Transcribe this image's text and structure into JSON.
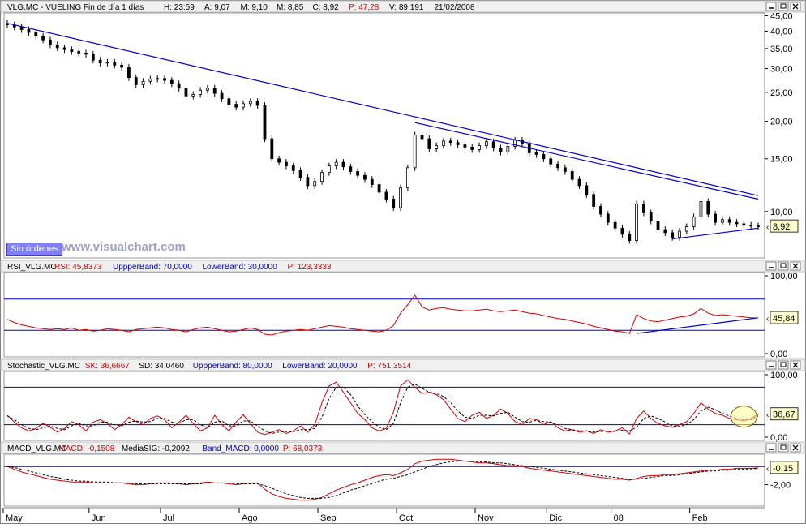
{
  "watermark": "www.visualchart.com",
  "orders_button_label": "Sin órdenes",
  "window_icons": [
    "minimize-icon",
    "maximize-icon",
    "close-icon"
  ],
  "colors": {
    "price": "#000000",
    "trendline": "#0000cc",
    "indicator_line": "#d40000",
    "band_line": "#0000cc",
    "signal_line": "#000000",
    "value_label_bg": "#ffffcc",
    "header_bg": "#f0f0f0",
    "orders_button_bg": "#8080ff"
  },
  "x_axis": {
    "labels": [
      "May",
      "Jun",
      "Jul",
      "Ago",
      "Sep",
      "Oct",
      "Nov",
      "Dic",
      "08",
      "Feb"
    ]
  },
  "chart_data": [
    {
      "type": "candlestick",
      "title": "VLG.MC - VUELING  Fin de día 1 días",
      "header_fields": [
        {
          "label": "H:",
          "value": "23:59",
          "color": "#000000"
        },
        {
          "label": "A:",
          "value": "9,07",
          "color": "#000000"
        },
        {
          "label": "M:",
          "value": "9,10",
          "color": "#000000"
        },
        {
          "label": "M:",
          "value": "8,85",
          "color": "#000000"
        },
        {
          "label": "C:",
          "value": "8,92",
          "color": "#000000"
        },
        {
          "label": "P:",
          "value": "47,28",
          "color": "#d40000"
        },
        {
          "label": "V:",
          "value": "89.191",
          "color": "#000000"
        },
        {
          "label": "",
          "value": "21/02/2008",
          "color": "#000000"
        }
      ],
      "y_scale": "log",
      "ylim": [
        7.0,
        46.0
      ],
      "y_ticks": [
        "45,00",
        "40,00",
        "35,00",
        "30,00",
        "25,00",
        "20,00",
        "15,00",
        "10,00"
      ],
      "last_value": "8,92",
      "close_series": [
        42.0,
        41.3,
        40.5,
        39.6,
        38.5,
        37.4,
        36.0,
        35.2,
        34.7,
        34.2,
        33.8,
        33.5,
        32.0,
        31.3,
        31.5,
        30.8,
        30.3,
        28.0,
        26.5,
        27.2,
        27.7,
        27.8,
        27.4,
        26.7,
        25.8,
        24.3,
        24.6,
        25.4,
        25.8,
        24.8,
        23.8,
        22.8,
        22.3,
        22.9,
        23.3,
        22.6,
        17.5,
        15.0,
        14.6,
        14.2,
        13.7,
        13.0,
        12.2,
        12.6,
        13.5,
        14.2,
        14.6,
        14.1,
        13.6,
        13.2,
        12.8,
        12.3,
        11.6,
        11.0,
        10.3,
        12.0,
        14.0,
        18.0,
        17.5,
        16.2,
        16.6,
        17.2,
        17.0,
        16.7,
        16.4,
        16.1,
        16.6,
        17.1,
        16.3,
        15.8,
        16.5,
        17.3,
        16.8,
        15.7,
        15.5,
        15.0,
        14.4,
        14.0,
        13.6,
        12.8,
        12.2,
        11.4,
        10.4,
        9.8,
        9.2,
        8.8,
        8.4,
        8.0,
        10.6,
        9.9,
        9.3,
        8.7,
        8.5,
        8.2,
        8.6,
        8.9,
        9.6,
        10.8,
        9.8,
        9.2,
        9.4,
        9.2,
        9.1,
        9.0,
        8.95,
        8.92
      ],
      "trendlines_drawn": true
    },
    {
      "type": "line",
      "title": "RSI_VLG.MC",
      "header_fields": [
        {
          "label": "RSI:",
          "value": "45,8373",
          "color": "#d40000"
        },
        {
          "label": "UppperBand:",
          "value": "70,0000",
          "color": "#0000cc"
        },
        {
          "label": "LowerBand:",
          "value": "30,0000",
          "color": "#0000cc"
        },
        {
          "label": "P:",
          "value": "123,3333",
          "color": "#d40000"
        }
      ],
      "ylim": [
        0,
        100
      ],
      "y_ticks": [
        "100,00",
        "0,00"
      ],
      "bands": [
        70,
        30
      ],
      "last_value": "45,84",
      "series": [
        {
          "values": [
            44,
            40,
            37,
            35,
            33,
            32,
            31,
            32,
            31,
            33,
            30,
            31,
            29,
            30,
            32,
            31,
            30,
            28,
            31,
            32,
            33,
            34,
            33,
            31,
            30,
            28,
            31,
            33,
            34,
            32,
            30,
            28,
            29,
            31,
            33,
            31,
            25,
            24,
            27,
            29,
            30,
            31,
            30,
            32,
            34,
            36,
            35,
            34,
            32,
            31,
            30,
            29,
            28,
            30,
            36,
            52,
            63,
            75,
            60,
            56,
            58,
            59,
            57,
            56,
            55,
            55,
            56,
            57,
            55,
            54,
            55,
            56,
            54,
            52,
            51,
            49,
            47,
            45,
            44,
            42,
            40,
            38,
            35,
            33,
            31,
            29,
            28,
            26,
            50,
            45,
            42,
            41,
            43,
            45,
            47,
            48,
            51,
            58,
            52,
            49,
            50,
            49,
            48,
            47,
            46,
            45.8
          ]
        }
      ]
    },
    {
      "type": "line",
      "title": "Stochastic_VLG.MC",
      "header_fields": [
        {
          "label": "SK:",
          "value": "36,6667",
          "color": "#d40000"
        },
        {
          "label": "SD:",
          "value": "34,0460",
          "color": "#000000"
        },
        {
          "label": "UppperBand:",
          "value": "80,0000",
          "color": "#0000cc"
        },
        {
          "label": "LowerBand:",
          "value": "20,0000",
          "color": "#0000cc"
        },
        {
          "label": "P:",
          "value": "751,3514",
          "color": "#d40000"
        }
      ],
      "ylim": [
        0,
        100
      ],
      "y_ticks": [
        "100,00",
        "0,00"
      ],
      "bands": [
        80,
        20
      ],
      "last_value": "36,67",
      "series": [
        {
          "name": "SK",
          "values": [
            35,
            24,
            15,
            10,
            14,
            22,
            16,
            8,
            14,
            25,
            20,
            10,
            24,
            28,
            22,
            12,
            20,
            32,
            25,
            20,
            30,
            34,
            28,
            15,
            24,
            35,
            22,
            10,
            15,
            35,
            20,
            10,
            24,
            36,
            22,
            8,
            4,
            8,
            12,
            6,
            10,
            18,
            8,
            20,
            55,
            82,
            88,
            72,
            55,
            38,
            28,
            15,
            10,
            14,
            40,
            82,
            92,
            80,
            70,
            72,
            68,
            60,
            45,
            30,
            25,
            35,
            40,
            30,
            35,
            45,
            38,
            25,
            20,
            30,
            28,
            20,
            25,
            15,
            10,
            12,
            8,
            10,
            6,
            12,
            8,
            10,
            15,
            5,
            30,
            42,
            30,
            22,
            18,
            16,
            20,
            25,
            38,
            55,
            45,
            38,
            35,
            30,
            28,
            26,
            30,
            36.7
          ]
        },
        {
          "name": "SD",
          "values": [
            34,
            28,
            20,
            14,
            12,
            15,
            18,
            14,
            12,
            18,
            22,
            18,
            18,
            24,
            24,
            20,
            18,
            24,
            26,
            24,
            25,
            30,
            30,
            24,
            22,
            28,
            28,
            20,
            15,
            24,
            26,
            18,
            18,
            26,
            26,
            18,
            10,
            6,
            8,
            9,
            9,
            12,
            12,
            14,
            32,
            62,
            80,
            80,
            68,
            50,
            36,
            25,
            16,
            12,
            22,
            55,
            80,
            85,
            78,
            72,
            70,
            65,
            55,
            42,
            32,
            30,
            35,
            35,
            34,
            38,
            40,
            32,
            25,
            24,
            27,
            25,
            24,
            20,
            14,
            12,
            10,
            10,
            8,
            9,
            10,
            9,
            11,
            10,
            16,
            30,
            34,
            30,
            24,
            18,
            17,
            20,
            28,
            42,
            48,
            44,
            38,
            34,
            30,
            28,
            28,
            34.0
          ]
        }
      ]
    },
    {
      "type": "line",
      "title": "MACD_VLG.MC",
      "header_fields": [
        {
          "label": "MACD:",
          "value": "-0,1508",
          "color": "#d40000"
        },
        {
          "label": "MediaSIG:",
          "value": "-0,2092",
          "color": "#000000"
        },
        {
          "label": "Band_MACD:",
          "value": "0,0000",
          "color": "#0000cc"
        },
        {
          "label": "P:",
          "value": "68,0373",
          "color": "#d40000"
        }
      ],
      "ylim": [
        -4.0,
        1.0
      ],
      "y_ticks": [
        "-2,00"
      ],
      "bands": [
        0
      ],
      "last_value": "-0,15",
      "series": [
        {
          "name": "MACD",
          "values": [
            0.0,
            -0.3,
            -0.6,
            -0.8,
            -1.0,
            -1.2,
            -1.4,
            -1.5,
            -1.6,
            -1.7,
            -1.7,
            -1.7,
            -1.8,
            -1.8,
            -1.8,
            -1.8,
            -1.8,
            -1.9,
            -2.0,
            -2.0,
            -1.9,
            -1.8,
            -1.8,
            -1.8,
            -1.9,
            -2.0,
            -1.9,
            -1.8,
            -1.7,
            -1.8,
            -1.8,
            -1.9,
            -2.0,
            -1.9,
            -1.8,
            -1.8,
            -2.5,
            -3.0,
            -3.3,
            -3.5,
            -3.6,
            -3.7,
            -3.7,
            -3.6,
            -3.4,
            -3.0,
            -2.6,
            -2.3,
            -2.0,
            -1.8,
            -1.5,
            -1.2,
            -1.0,
            -0.9,
            -1.0,
            -0.7,
            -0.3,
            0.3,
            0.6,
            0.7,
            0.8,
            0.8,
            0.8,
            0.7,
            0.6,
            0.5,
            0.4,
            0.4,
            0.3,
            0.2,
            0.1,
            0.1,
            0.0,
            -0.2,
            -0.3,
            -0.4,
            -0.5,
            -0.6,
            -0.7,
            -0.8,
            -0.9,
            -1.0,
            -1.1,
            -1.2,
            -1.3,
            -1.4,
            -1.4,
            -1.5,
            -1.3,
            -1.1,
            -1.0,
            -1.0,
            -0.9,
            -0.9,
            -0.8,
            -0.7,
            -0.6,
            -0.5,
            -0.4,
            -0.4,
            -0.3,
            -0.3,
            -0.2,
            -0.2,
            -0.2,
            -0.15
          ]
        },
        {
          "name": "MediaSIG",
          "values": [
            0.0,
            -0.1,
            -0.3,
            -0.5,
            -0.7,
            -0.9,
            -1.1,
            -1.2,
            -1.4,
            -1.5,
            -1.6,
            -1.6,
            -1.7,
            -1.7,
            -1.7,
            -1.8,
            -1.8,
            -1.8,
            -1.9,
            -1.9,
            -1.9,
            -1.9,
            -1.9,
            -1.9,
            -1.9,
            -1.9,
            -1.9,
            -1.9,
            -1.8,
            -1.8,
            -1.8,
            -1.8,
            -1.9,
            -1.9,
            -1.9,
            -1.9,
            -2.1,
            -2.4,
            -2.7,
            -3.0,
            -3.2,
            -3.4,
            -3.5,
            -3.5,
            -3.5,
            -3.4,
            -3.2,
            -2.9,
            -2.6,
            -2.4,
            -2.1,
            -1.9,
            -1.6,
            -1.4,
            -1.3,
            -1.1,
            -0.9,
            -0.6,
            -0.3,
            0.0,
            0.2,
            0.4,
            0.5,
            0.6,
            0.6,
            0.6,
            0.5,
            0.5,
            0.4,
            0.4,
            0.3,
            0.2,
            0.1,
            0.0,
            -0.1,
            -0.2,
            -0.3,
            -0.4,
            -0.5,
            -0.6,
            -0.7,
            -0.8,
            -0.9,
            -1.0,
            -1.1,
            -1.2,
            -1.3,
            -1.4,
            -1.4,
            -1.3,
            -1.2,
            -1.1,
            -1.0,
            -1.0,
            -0.9,
            -0.8,
            -0.7,
            -0.6,
            -0.5,
            -0.5,
            -0.4,
            -0.4,
            -0.3,
            -0.3,
            -0.25,
            -0.21
          ]
        }
      ]
    }
  ]
}
